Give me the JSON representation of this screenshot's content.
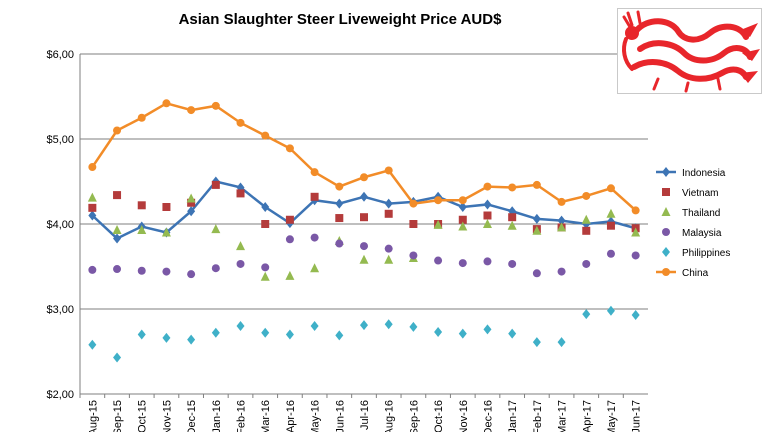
{
  "chart_data": {
    "type": "line",
    "title": "Asian Slaughter Steer Liveweight Price AUD$",
    "xlabel": "",
    "ylabel": "",
    "ylim": [
      2.0,
      6.0
    ],
    "yticks": [
      "$2,00",
      "$3,00",
      "$4,00",
      "$5,00",
      "$6,00"
    ],
    "ytick_values": [
      2,
      3,
      4,
      5,
      6
    ],
    "categories": [
      "Aug-15",
      "Sep-15",
      "Oct-15",
      "Nov-15",
      "Dec-15",
      "Jan-16",
      "Feb-16",
      "Mar-16",
      "Apr-16",
      "May-16",
      "Jun-16",
      "Jul-16",
      "Aug-16",
      "Sep-16",
      "Oct-16",
      "Nov-16",
      "Dec-16",
      "Jan-17",
      "Feb-17",
      "Mar-17",
      "Apr-17",
      "May-17",
      "Jun-17"
    ],
    "grid": "horizontal",
    "legend_position": "right",
    "series": [
      {
        "name": "Indonesia",
        "style": "line-diamond",
        "color": "#3d74b4",
        "values": [
          4.1,
          3.83,
          3.97,
          3.9,
          4.15,
          4.5,
          4.43,
          4.2,
          4.01,
          4.28,
          4.24,
          4.32,
          4.24,
          4.26,
          4.32,
          4.2,
          4.23,
          4.15,
          4.06,
          4.04,
          4.0,
          4.03,
          3.95
        ]
      },
      {
        "name": "Vietnam",
        "style": "square",
        "color": "#b43b3b",
        "values": [
          4.19,
          4.34,
          4.22,
          4.2,
          4.25,
          4.46,
          4.36,
          4.0,
          4.05,
          4.32,
          4.07,
          4.08,
          4.12,
          4.0,
          4.0,
          4.05,
          4.1,
          4.08,
          3.94,
          3.96,
          3.92,
          3.98,
          3.95
        ]
      },
      {
        "name": "Thailand",
        "style": "triangle",
        "color": "#94ba50",
        "values": [
          4.31,
          3.93,
          3.93,
          3.9,
          4.3,
          3.94,
          3.74,
          3.38,
          3.39,
          3.48,
          3.8,
          3.58,
          3.58,
          3.6,
          3.99,
          3.97,
          4.0,
          3.98,
          3.92,
          3.96,
          4.05,
          4.12,
          3.9
        ]
      },
      {
        "name": "Malaysia",
        "style": "circle",
        "color": "#7a58a6",
        "values": [
          3.46,
          3.47,
          3.45,
          3.44,
          3.41,
          3.48,
          3.53,
          3.49,
          3.82,
          3.84,
          3.77,
          3.74,
          3.71,
          3.63,
          3.57,
          3.54,
          3.56,
          3.53,
          3.42,
          3.44,
          3.53,
          3.65,
          3.63
        ]
      },
      {
        "name": "Philippines",
        "style": "diamond",
        "color": "#3fb0c8",
        "values": [
          2.58,
          2.43,
          2.7,
          2.66,
          2.64,
          2.72,
          2.8,
          2.72,
          2.7,
          2.8,
          2.69,
          2.81,
          2.82,
          2.79,
          2.73,
          2.71,
          2.76,
          2.71,
          2.61,
          2.61,
          2.94,
          2.98,
          2.93
        ]
      },
      {
        "name": "China",
        "style": "line-circle",
        "color": "#f28c28",
        "values": [
          4.67,
          5.1,
          5.25,
          5.42,
          5.34,
          5.39,
          5.19,
          5.04,
          4.89,
          4.61,
          4.44,
          4.55,
          4.63,
          4.24,
          4.28,
          4.28,
          4.44,
          4.43,
          4.46,
          4.26,
          4.33,
          4.42,
          4.16
        ]
      }
    ]
  },
  "logo": {
    "name": "red-dragon-logo",
    "color": "#e8262b"
  }
}
